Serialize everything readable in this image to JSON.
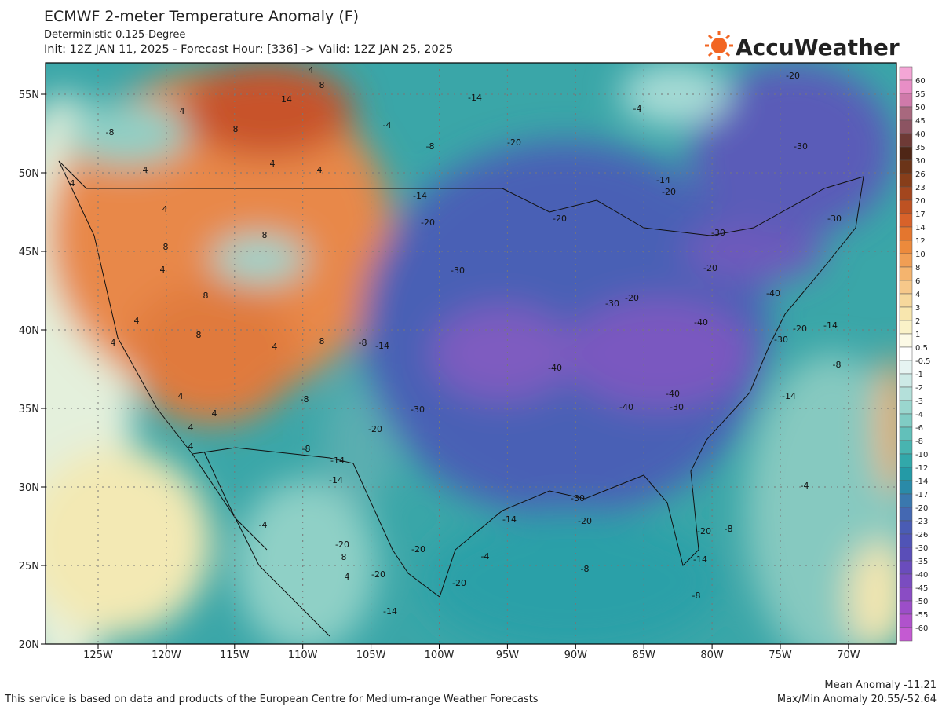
{
  "header": {
    "title": "ECMWF 2-meter Temperature Anomaly (F)",
    "subtitle": "Deterministic 0.125-Degree",
    "run": "Init: 12Z JAN 11, 2025 - Forecast Hour: [336] -> Valid: 12Z JAN 25, 2025",
    "logo": "AccuWeather"
  },
  "axes": {
    "lon_labels": [
      "125W",
      "120W",
      "115W",
      "110W",
      "105W",
      "100W",
      "95W",
      "90W",
      "85W",
      "80W",
      "75W",
      "70W"
    ],
    "lat_labels": [
      "55N",
      "50N",
      "45N",
      "40N",
      "35N",
      "30N",
      "25N",
      "20N"
    ]
  },
  "colorbar": {
    "labels": [
      "60",
      "55",
      "50",
      "45",
      "40",
      "35",
      "30",
      "26",
      "23",
      "20",
      "17",
      "14",
      "12",
      "10",
      "8",
      "6",
      "4",
      "3",
      "2",
      "1",
      "0.5",
      "-0.5",
      "-1",
      "-2",
      "-3",
      "-4",
      "-6",
      "-8",
      "-10",
      "-12",
      "-14",
      "-17",
      "-20",
      "-23",
      "-26",
      "-30",
      "-35",
      "-40",
      "-45",
      "-50",
      "-55",
      "-60"
    ],
    "colors": [
      "#f4a6d6",
      "#e88ec6",
      "#cf7aaa",
      "#a8687e",
      "#8c5462",
      "#6e3a36",
      "#4f2616",
      "#6b3418",
      "#873e1a",
      "#a3461e",
      "#be5222",
      "#d8622a",
      "#e4762e",
      "#ec8a3c",
      "#f09e54",
      "#f4b46e",
      "#f6c88a",
      "#f6d89c",
      "#f8e6ae",
      "#faf2c8",
      "#fcfae6",
      "#ffffff",
      "#e6f4f2",
      "#cdeae6",
      "#b4e0da",
      "#9ad6ce",
      "#80ccc4",
      "#62c0ba",
      "#48b4b0",
      "#32a8aa",
      "#249aa6",
      "#2a8aa8",
      "#3a78ae",
      "#4468b2",
      "#4a5cb4",
      "#5054b6",
      "#5a4eb8",
      "#6a4cbc",
      "#7a4cc0",
      "#8a4cc4",
      "#9c4ec8",
      "#b052cc",
      "#c45ad2"
    ]
  },
  "contours": [
    "14",
    "8",
    "-8",
    "4",
    "8",
    "4",
    "4",
    "4",
    "4",
    "4",
    "4",
    "8",
    "8",
    "4",
    "8",
    "8",
    "4",
    "8",
    "4",
    "4",
    "4",
    "-8",
    "-8",
    "-14",
    "-14",
    "-8",
    "-14",
    "-20",
    "-30",
    "-30",
    "-20",
    "-14",
    "-4",
    "-8",
    "-14",
    "-20",
    "-4",
    "-20",
    "-30",
    "-14",
    "-20",
    "-20",
    "-30",
    "-20",
    "-30",
    "-20",
    "-40",
    "-40",
    "-40",
    "-40",
    "-40",
    "-30",
    "-14",
    "-8",
    "-14",
    "-20",
    "-30",
    "-30",
    "-30",
    "-14",
    "-20",
    "-4",
    "-8",
    "-20",
    "-8",
    "-14",
    "-4",
    "-8",
    "-20",
    "8",
    "4",
    "-20",
    "-20",
    "-20",
    "-14",
    "-4",
    "4",
    "4",
    "4"
  ],
  "footer": {
    "source": "This service is based on data and products of the European Centre for Medium-range Weather Forecasts",
    "mean": "Mean Anomaly -11.21",
    "maxmin": "Max/Min Anomaly 20.55/-52.64"
  }
}
